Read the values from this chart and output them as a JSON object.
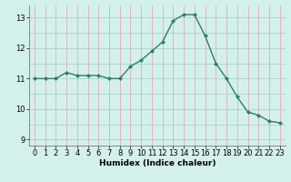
{
  "x": [
    0,
    1,
    2,
    3,
    4,
    5,
    6,
    7,
    8,
    9,
    10,
    11,
    12,
    13,
    14,
    15,
    16,
    17,
    18,
    19,
    20,
    21,
    22,
    23
  ],
  "y": [
    11.0,
    11.0,
    11.0,
    11.2,
    11.1,
    11.1,
    11.1,
    11.0,
    11.0,
    11.4,
    11.6,
    11.9,
    12.2,
    12.9,
    13.1,
    13.1,
    12.4,
    11.5,
    11.0,
    10.4,
    9.9,
    9.8,
    9.6,
    9.55
  ],
  "line_color": "#2e7d6e",
  "marker": "D",
  "marker_size": 2,
  "bg_color": "#d4f0ec",
  "xlabel": "Humidex (Indice chaleur)",
  "xlim": [
    -0.5,
    23.5
  ],
  "ylim": [
    8.8,
    13.4
  ],
  "yticks": [
    9,
    10,
    11,
    12,
    13
  ],
  "xticks": [
    0,
    1,
    2,
    3,
    4,
    5,
    6,
    7,
    8,
    9,
    10,
    11,
    12,
    13,
    14,
    15,
    16,
    17,
    18,
    19,
    20,
    21,
    22,
    23
  ],
  "grid_v_color": "#e8a0a0",
  "grid_h_color": "#a0cccc",
  "label_fontsize": 6.5,
  "tick_fontsize": 6
}
